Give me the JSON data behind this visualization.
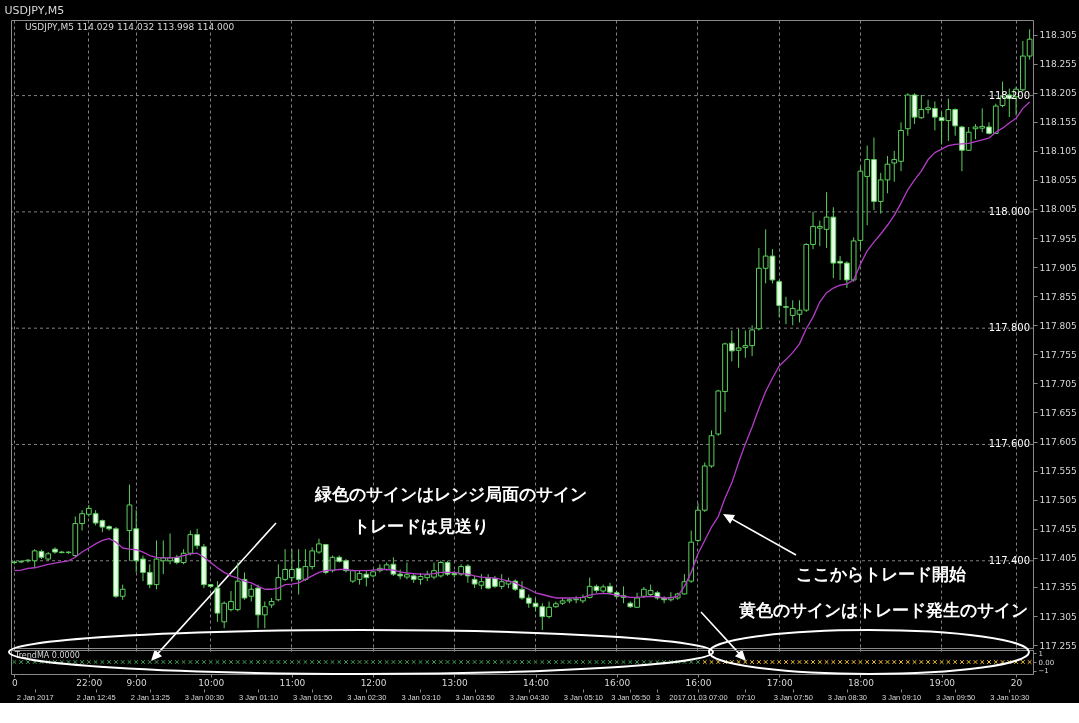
{
  "chart_data": [
    {
      "type": "candlestick",
      "title": "USDJPY,M5",
      "subtitle": "USDJPY,M5  114.029 114.032 113.998 114.000",
      "categories": [
        "0",
        null,
        null,
        null,
        null,
        null,
        null,
        null,
        null,
        null,
        null,
        "22:00",
        null,
        null,
        null,
        null,
        null,
        null,
        "9:00",
        null,
        null,
        null,
        null,
        null,
        null,
        null,
        null,
        null,
        null,
        "10:00",
        null,
        null,
        null,
        null,
        null,
        null,
        null,
        null,
        null,
        null,
        null,
        "11:00",
        null,
        null,
        null,
        null,
        null,
        null,
        null,
        null,
        null,
        null,
        null,
        "12:00",
        null,
        null,
        null,
        null,
        null,
        null,
        null,
        null,
        null,
        null,
        null,
        "13:00",
        null,
        null,
        null,
        null,
        null,
        null,
        null,
        null,
        null,
        null,
        null,
        "14:00",
        null,
        null,
        null,
        null,
        null,
        null,
        null,
        null,
        null,
        null,
        null,
        "16:00",
        null,
        null,
        null,
        null,
        null,
        null,
        null,
        null,
        null,
        null,
        null,
        "16:00",
        null,
        null,
        null,
        null,
        null,
        null,
        null,
        null,
        null,
        null,
        null,
        "17:00",
        null,
        null,
        null,
        null,
        null,
        null,
        null,
        null,
        null,
        null,
        null,
        "18:00",
        null,
        null,
        null,
        null,
        null,
        null,
        null,
        null,
        null,
        null,
        null,
        "19:00",
        null,
        null,
        null,
        null,
        null,
        null,
        null,
        null,
        null,
        null,
        "20",
        null,
        null
      ],
      "color": "#5ccf5c",
      "ohlc": [
        [
          117.397,
          117.4,
          117.394,
          117.398
        ],
        [
          117.398,
          117.401,
          117.396,
          117.399
        ],
        [
          117.4,
          117.403,
          117.397,
          117.401
        ],
        [
          117.4,
          117.42,
          117.388,
          117.417
        ],
        [
          117.416,
          117.419,
          117.403,
          117.406
        ],
        [
          117.403,
          117.415,
          117.4,
          117.412
        ],
        [
          117.42,
          117.423,
          117.412,
          117.415
        ],
        [
          117.415,
          117.417,
          117.413,
          117.414
        ],
        [
          117.414,
          117.416,
          117.412,
          117.415
        ],
        [
          117.409,
          117.476,
          117.406,
          117.464
        ],
        [
          117.464,
          117.487,
          117.452,
          117.481
        ],
        [
          117.48,
          117.496,
          117.476,
          117.49
        ],
        [
          117.481,
          117.487,
          117.461,
          117.465
        ],
        [
          117.469,
          117.471,
          117.449,
          117.458
        ],
        [
          117.459,
          117.461,
          117.452,
          117.455
        ],
        [
          117.455,
          117.458,
          117.336,
          117.339
        ],
        [
          117.339,
          117.359,
          117.333,
          117.351
        ],
        [
          117.452,
          117.531,
          117.4,
          117.496
        ],
        [
          117.455,
          117.487,
          117.38,
          117.4
        ],
        [
          117.403,
          117.409,
          117.365,
          117.38
        ],
        [
          117.38,
          117.394,
          117.353,
          117.359
        ],
        [
          117.359,
          117.435,
          117.351,
          117.403
        ],
        [
          117.4,
          117.435,
          117.377,
          117.405
        ],
        [
          117.4,
          117.447,
          117.394,
          117.405
        ],
        [
          117.406,
          117.41,
          117.394,
          117.397
        ],
        [
          117.397,
          117.42,
          117.394,
          117.413
        ],
        [
          117.413,
          117.452,
          117.409,
          117.445
        ],
        [
          117.445,
          117.455,
          117.42,
          117.426
        ],
        [
          117.424,
          117.429,
          117.353,
          117.359
        ],
        [
          117.359,
          117.36,
          117.353,
          117.356
        ],
        [
          117.353,
          117.365,
          117.295,
          117.31
        ],
        [
          117.295,
          117.33,
          117.284,
          117.327
        ],
        [
          117.316,
          117.348,
          117.313,
          117.33
        ],
        [
          117.316,
          117.397,
          117.313,
          117.365
        ],
        [
          117.368,
          117.38,
          117.333,
          117.336
        ],
        [
          117.339,
          117.359,
          117.33,
          117.351
        ],
        [
          117.353,
          117.359,
          117.284,
          117.307
        ],
        [
          117.307,
          117.33,
          117.284,
          117.321
        ],
        [
          117.324,
          117.336,
          117.319,
          117.33
        ],
        [
          117.333,
          117.394,
          117.33,
          117.371
        ],
        [
          117.368,
          117.42,
          117.365,
          117.385
        ],
        [
          117.371,
          117.42,
          117.365,
          117.385
        ],
        [
          117.387,
          117.42,
          117.342,
          117.368
        ],
        [
          117.368,
          117.42,
          117.365,
          117.39
        ],
        [
          117.39,
          117.423,
          117.385,
          117.417
        ],
        [
          117.415,
          117.438,
          117.412,
          117.429
        ],
        [
          117.428,
          117.429,
          117.377,
          117.38
        ],
        [
          117.383,
          117.409,
          117.38,
          117.406
        ],
        [
          117.406,
          117.409,
          117.397,
          117.399
        ],
        [
          117.4,
          117.403,
          117.38,
          117.383
        ],
        [
          117.365,
          117.385,
          117.362,
          117.383
        ],
        [
          117.368,
          117.383,
          117.359,
          117.378
        ],
        [
          117.377,
          117.383,
          117.356,
          117.371
        ],
        [
          117.374,
          117.385,
          117.371,
          117.381
        ],
        [
          117.383,
          117.394,
          117.38,
          117.387
        ],
        [
          117.385,
          117.397,
          117.383,
          117.393
        ],
        [
          117.394,
          117.406,
          117.374,
          117.377
        ],
        [
          117.377,
          117.385,
          117.368,
          117.374
        ],
        [
          117.372,
          117.397,
          117.368,
          117.376
        ],
        [
          117.374,
          117.377,
          117.362,
          117.368
        ],
        [
          117.368,
          117.379,
          117.359,
          117.373
        ],
        [
          117.371,
          117.383,
          117.365,
          117.376
        ],
        [
          117.372,
          117.397,
          117.368,
          117.383
        ],
        [
          117.374,
          117.4,
          117.371,
          117.397
        ],
        [
          117.397,
          117.4,
          117.374,
          117.377
        ],
        [
          117.378,
          117.383,
          117.371,
          117.376
        ],
        [
          117.377,
          117.394,
          117.374,
          117.39
        ],
        [
          117.391,
          117.394,
          117.362,
          117.374
        ],
        [
          117.368,
          117.374,
          117.353,
          117.36
        ],
        [
          117.358,
          117.377,
          117.351,
          117.364
        ],
        [
          117.37,
          117.377,
          117.351,
          117.353
        ],
        [
          117.37,
          117.374,
          117.353,
          117.356
        ],
        [
          117.356,
          117.377,
          117.351,
          117.364
        ],
        [
          117.36,
          117.371,
          117.353,
          117.365
        ],
        [
          117.365,
          117.368,
          117.348,
          117.351
        ],
        [
          117.351,
          117.365,
          117.333,
          117.336
        ],
        [
          117.336,
          117.342,
          117.319,
          117.327
        ],
        [
          117.327,
          117.336,
          117.313,
          117.321
        ],
        [
          117.321,
          117.327,
          117.281,
          117.304
        ],
        [
          117.304,
          117.33,
          117.301,
          117.32
        ],
        [
          117.321,
          117.33,
          117.319,
          117.326
        ],
        [
          117.327,
          117.336,
          117.324,
          117.331
        ],
        [
          117.331,
          117.336,
          117.327,
          117.333
        ],
        [
          117.333,
          117.339,
          117.327,
          117.334
        ],
        [
          117.331,
          117.342,
          117.327,
          117.337
        ],
        [
          117.337,
          117.371,
          117.335,
          117.356
        ],
        [
          117.356,
          117.359,
          117.345,
          117.349
        ],
        [
          117.348,
          117.359,
          117.345,
          117.355
        ],
        [
          117.356,
          117.362,
          117.342,
          117.346
        ],
        [
          117.345,
          117.348,
          117.336,
          117.339
        ],
        [
          117.337,
          117.356,
          117.327,
          117.34
        ],
        [
          117.327,
          117.33,
          117.319,
          117.321
        ],
        [
          117.32,
          117.345,
          117.319,
          117.336
        ],
        [
          117.339,
          117.355,
          117.336,
          117.351
        ],
        [
          117.342,
          117.359,
          117.339,
          117.349
        ],
        [
          117.345,
          117.348,
          117.333,
          117.336
        ],
        [
          117.336,
          117.339,
          117.327,
          117.333
        ],
        [
          117.333,
          117.346,
          117.33,
          117.337
        ],
        [
          117.336,
          117.345,
          117.333,
          117.343
        ],
        [
          117.343,
          117.377,
          117.342,
          117.364
        ],
        [
          117.365,
          117.452,
          117.362,
          117.432
        ],
        [
          117.435,
          117.499,
          117.432,
          117.487
        ],
        [
          117.487,
          117.569,
          117.484,
          117.563
        ],
        [
          117.563,
          117.624,
          117.56,
          117.615
        ],
        [
          117.618,
          117.694,
          117.615,
          117.692
        ],
        [
          117.691,
          117.775,
          117.656,
          117.773
        ],
        [
          117.774,
          117.796,
          117.743,
          117.761
        ],
        [
          117.762,
          117.799,
          117.732,
          117.766
        ],
        [
          117.767,
          117.796,
          117.749,
          117.77
        ],
        [
          117.77,
          117.805,
          117.752,
          117.797
        ],
        [
          117.799,
          117.938,
          117.796,
          117.903
        ],
        [
          117.903,
          117.97,
          117.877,
          117.924
        ],
        [
          117.924,
          117.936,
          117.877,
          117.883
        ],
        [
          117.88,
          117.883,
          117.819,
          117.839
        ],
        [
          117.837,
          117.854,
          117.807,
          117.836
        ],
        [
          117.822,
          117.848,
          117.805,
          117.834
        ],
        [
          117.824,
          117.848,
          117.81,
          117.831
        ],
        [
          117.831,
          117.946,
          117.828,
          117.944
        ],
        [
          117.944,
          118.0,
          117.936,
          117.975
        ],
        [
          117.972,
          117.985,
          117.941,
          117.975
        ],
        [
          117.97,
          118.034,
          117.938,
          117.991
        ],
        [
          117.991,
          118.008,
          117.886,
          117.912
        ],
        [
          117.915,
          117.924,
          117.883,
          117.912
        ],
        [
          117.912,
          117.915,
          117.869,
          117.883
        ],
        [
          117.883,
          117.956,
          117.88,
          117.95
        ],
        [
          117.951,
          118.078,
          117.936,
          118.07
        ],
        [
          118.061,
          118.114,
          117.977,
          118.09
        ],
        [
          118.09,
          118.128,
          118.003,
          118.018
        ],
        [
          118.018,
          118.067,
          117.997,
          118.055
        ],
        [
          118.055,
          118.096,
          118.032,
          118.082
        ],
        [
          118.084,
          118.105,
          118.052,
          118.09
        ],
        [
          118.087,
          118.154,
          118.07,
          118.14
        ],
        [
          118.143,
          118.204,
          118.131,
          118.201
        ],
        [
          118.201,
          118.204,
          118.151,
          118.163
        ],
        [
          118.162,
          118.201,
          118.16,
          118.176
        ],
        [
          118.176,
          118.193,
          118.169,
          118.179
        ],
        [
          118.178,
          118.19,
          118.14,
          118.163
        ],
        [
          118.162,
          118.172,
          118.116,
          118.157
        ],
        [
          118.157,
          118.195,
          118.122,
          118.176
        ],
        [
          118.176,
          118.178,
          118.131,
          118.148
        ],
        [
          118.146,
          118.148,
          118.07,
          118.106
        ],
        [
          118.106,
          118.146,
          118.105,
          118.137
        ],
        [
          118.143,
          118.151,
          118.125,
          118.146
        ],
        [
          118.144,
          118.178,
          118.137,
          118.147
        ],
        [
          118.146,
          118.154,
          118.133,
          118.135
        ],
        [
          118.135,
          118.186,
          118.134,
          118.182
        ],
        [
          118.183,
          118.224,
          118.18,
          118.198
        ],
        [
          118.201,
          118.212,
          118.163,
          118.195
        ],
        [
          118.198,
          118.215,
          118.166,
          118.211
        ],
        [
          118.21,
          118.294,
          118.207,
          118.268
        ],
        [
          118.268,
          118.314,
          118.262,
          118.297
        ]
      ],
      "series": [
        {
          "type": "line",
          "color": "#b43cc8",
          "values": [
            117.383,
            117.384,
            117.387,
            117.388,
            117.391,
            117.394,
            117.396,
            117.398,
            117.4,
            117.406,
            117.415,
            117.422,
            117.429,
            117.435,
            117.438,
            117.432,
            117.422,
            117.42,
            117.419,
            117.415,
            117.409,
            117.406,
            117.405,
            117.405,
            117.406,
            117.409,
            117.412,
            117.413,
            117.406,
            117.397,
            117.388,
            117.38,
            117.374,
            117.37,
            117.365,
            117.362,
            117.356,
            117.351,
            117.351,
            117.353,
            117.359,
            117.36,
            117.362,
            117.368,
            117.374,
            117.38,
            117.383,
            117.384,
            117.385,
            117.385,
            117.383,
            117.383,
            117.383,
            117.384,
            117.385,
            117.385,
            117.384,
            117.381,
            117.379,
            117.378,
            117.377,
            117.377,
            117.378,
            117.38,
            117.38,
            117.38,
            117.378,
            117.377,
            117.374,
            117.372,
            117.371,
            117.37,
            117.368,
            117.365,
            117.362,
            117.356,
            117.351,
            117.345,
            117.342,
            117.339,
            117.336,
            117.336,
            117.336,
            117.336,
            117.337,
            117.341,
            117.343,
            117.344,
            117.343,
            117.341,
            117.339,
            117.337,
            117.337,
            117.338,
            117.339,
            117.338,
            117.336,
            117.336,
            117.339,
            117.356,
            117.38,
            117.412,
            117.435,
            117.458,
            117.476,
            117.508,
            117.534,
            117.569,
            117.601,
            117.63,
            117.662,
            117.691,
            117.714,
            117.735,
            117.746,
            117.758,
            117.773,
            117.799,
            117.819,
            117.845,
            117.861,
            117.869,
            117.874,
            117.876,
            117.883,
            117.91,
            117.933,
            117.948,
            117.962,
            117.977,
            117.994,
            118.015,
            118.038,
            118.055,
            118.07,
            118.09,
            118.102,
            118.108,
            118.114,
            118.116,
            118.117,
            118.118,
            118.121,
            118.124,
            118.127,
            118.137,
            118.144,
            118.153,
            118.161,
            118.178,
            118.189
          ]
        }
      ],
      "ylim": [
        117.25,
        118.33
      ],
      "yticks": [
        117.255,
        117.305,
        117.355,
        117.405,
        117.455,
        117.505,
        117.555,
        117.605,
        117.655,
        117.705,
        117.755,
        117.805,
        117.855,
        117.905,
        117.955,
        118.005,
        118.055,
        118.105,
        118.155,
        118.205,
        118.255,
        118.305
      ],
      "y2lim": [
        117.25,
        118.33
      ],
      "y2ticks": [
        {
          "value": 117.4,
          "label": "117.400"
        },
        {
          "value": 117.6,
          "label": "117.600"
        },
        {
          "value": 117.8,
          "label": "117.800"
        },
        {
          "value": 118.0,
          "label": "118.000"
        },
        {
          "value": 118.2,
          "label": "118.200"
        }
      ],
      "grid": true,
      "annotations": [
        "緑色のサインはレンジ局面のサイン",
        "トレードは見送り",
        "ここからトレード開始",
        "黄色のサインはトレード発生のサイン"
      ]
    },
    {
      "type": "scatter",
      "title": "TrendMA 0.0000",
      "marker": "cross",
      "categories": [
        null,
        null,
        null,
        "2 Jan 2017",
        null,
        null,
        null,
        null,
        null,
        null,
        null,
        null,
        "2 Jan 12:45",
        null,
        null,
        null,
        null,
        null,
        null,
        null,
        "2 Jan 13:25",
        null,
        null,
        null,
        null,
        null,
        null,
        null,
        "3 Jan 00:30",
        null,
        null,
        null,
        null,
        null,
        null,
        null,
        "3 Jan 01:10",
        null,
        null,
        null,
        null,
        null,
        null,
        null,
        "3 Jan 01:50",
        null,
        null,
        null,
        null,
        null,
        null,
        null,
        "3 Jan 02:30",
        null,
        null,
        null,
        null,
        null,
        null,
        null,
        "3 Jan 03:10",
        null,
        null,
        null,
        null,
        null,
        null,
        null,
        "3 Jan 03:50",
        null,
        null,
        null,
        null,
        null,
        null,
        null,
        "3 Jan 04:30",
        null,
        null,
        null,
        null,
        null,
        null,
        null,
        "3 Jan 05:10",
        null,
        null,
        null,
        null,
        null,
        null,
        "3 Jan 05:50",
        null,
        null,
        null,
        "3",
        null,
        null,
        null,
        null,
        null,
        "2017.01.03 07:00",
        null,
        null,
        null,
        null,
        null,
        null,
        "07:10",
        null,
        null,
        null,
        null,
        null,
        null,
        "3 Jan 07:50",
        null,
        null,
        null,
        null,
        null,
        null,
        null,
        "3 Jan 08:30",
        null,
        null,
        null,
        null,
        null,
        null,
        null,
        "3 Jan 09:10",
        null,
        null,
        null,
        null,
        null,
        null,
        null,
        "3 Jan 09:50",
        null,
        null,
        null,
        null,
        null,
        null,
        null,
        "3 Jan 10:30",
        null,
        null,
        null
      ],
      "series": [
        {
          "color": "#3f9a4f",
          "values": [
            0,
            0,
            0,
            0,
            0,
            0,
            0,
            0,
            0,
            0,
            0,
            0,
            0,
            0,
            0,
            0,
            0,
            0,
            0,
            0,
            0,
            0,
            0,
            0,
            0,
            0,
            0,
            0,
            0,
            0,
            0,
            0,
            0,
            0,
            0,
            0,
            0,
            0,
            0,
            0,
            0,
            0,
            0,
            0,
            0,
            0,
            0,
            0,
            0,
            0,
            0,
            0,
            0,
            0,
            0,
            0,
            0,
            0,
            0,
            0,
            0,
            0,
            0,
            0,
            0,
            0,
            0,
            0,
            0,
            0,
            0,
            0,
            0,
            0,
            0,
            0,
            0,
            0,
            0,
            0,
            0,
            0,
            0,
            0,
            0,
            0,
            0,
            0,
            0,
            0,
            0,
            0,
            0,
            0,
            0,
            0,
            0,
            0,
            0,
            0,
            0,
            0,
            null,
            null,
            null,
            null,
            null,
            null,
            null,
            null,
            null,
            null,
            null,
            null,
            null,
            null,
            null,
            null,
            null,
            null,
            null,
            null,
            null,
            null,
            null,
            null,
            null,
            null,
            null,
            null,
            null,
            null,
            null,
            null,
            null,
            null,
            null,
            null,
            null,
            null,
            null,
            null,
            null,
            null,
            null,
            null,
            null,
            null,
            null,
            null,
            null
          ]
        },
        {
          "color": "#f0c030",
          "values": [
            null,
            null,
            null,
            null,
            null,
            null,
            null,
            null,
            null,
            null,
            null,
            null,
            null,
            null,
            null,
            null,
            null,
            null,
            null,
            null,
            null,
            null,
            null,
            null,
            null,
            null,
            null,
            null,
            null,
            null,
            null,
            null,
            null,
            null,
            null,
            null,
            null,
            null,
            null,
            null,
            null,
            null,
            null,
            null,
            null,
            null,
            null,
            null,
            null,
            null,
            null,
            null,
            null,
            null,
            null,
            null,
            null,
            null,
            null,
            null,
            null,
            null,
            null,
            null,
            null,
            null,
            null,
            null,
            null,
            null,
            null,
            null,
            null,
            null,
            null,
            null,
            null,
            null,
            null,
            null,
            null,
            null,
            null,
            null,
            null,
            null,
            null,
            null,
            null,
            null,
            null,
            null,
            null,
            null,
            null,
            null,
            null,
            null,
            null,
            null,
            null,
            null,
            0,
            0,
            0,
            0,
            0,
            0,
            0,
            0,
            0,
            0,
            0,
            0,
            0,
            0,
            0,
            0,
            0,
            0,
            0,
            0,
            0,
            0,
            0,
            0,
            0,
            0,
            0,
            0,
            0,
            0,
            0,
            0,
            0,
            0,
            0,
            0,
            0,
            0,
            0,
            0,
            0,
            0,
            0,
            0,
            0,
            0,
            0,
            0,
            0
          ]
        }
      ],
      "ylim": [
        -1.4,
        1.4
      ],
      "yticks": [
        1,
        {
          "value": 0,
          "label": "0.00"
        },
        -1
      ]
    }
  ]
}
